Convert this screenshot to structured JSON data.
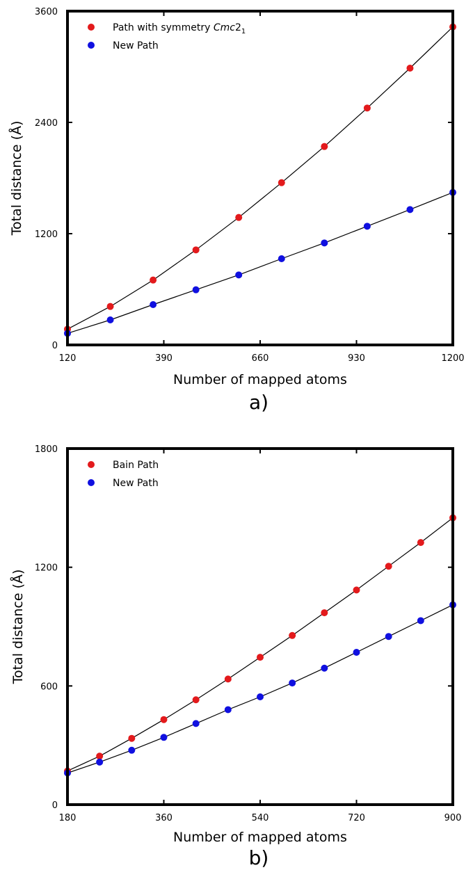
{
  "chart_data": [
    {
      "type": "scatter",
      "panel_label": "a)",
      "xlabel": "Number of mapped atoms",
      "ylabel": "Total distance (Å)",
      "xlim": [
        120,
        1200
      ],
      "ylim": [
        0,
        3600
      ],
      "xticks": [
        "120",
        "390",
        "660",
        "930",
        "1200"
      ],
      "yticks": [
        "0",
        "1200",
        "2400",
        "3600"
      ],
      "legend_position": "top-left",
      "grid": false,
      "series": [
        {
          "name": "Path with symmetry Cmc2",
          "name_subscript": "1",
          "color": "#e31a1c",
          "x": [
            120,
            240,
            360,
            480,
            600,
            720,
            840,
            960,
            1080,
            1200
          ],
          "y": [
            170,
            415,
            700,
            1025,
            1375,
            1750,
            2140,
            2555,
            2985,
            3430
          ]
        },
        {
          "name": "New Path",
          "color": "#1010e0",
          "x": [
            120,
            240,
            360,
            480,
            600,
            720,
            840,
            960,
            1080,
            1200
          ],
          "y": [
            125,
            270,
            435,
            595,
            755,
            930,
            1100,
            1280,
            1460,
            1645
          ]
        }
      ]
    },
    {
      "type": "scatter",
      "panel_label": "b)",
      "xlabel": "Number of mapped atoms",
      "ylabel": "Total distance (Å)",
      "xlim": [
        180,
        900
      ],
      "ylim": [
        0,
        1800
      ],
      "xticks": [
        "180",
        "360",
        "540",
        "720",
        "900"
      ],
      "yticks": [
        "0",
        "600",
        "1200",
        "1800"
      ],
      "legend_position": "top-left",
      "grid": false,
      "series": [
        {
          "name": "Bain Path",
          "color": "#e31a1c",
          "x": [
            180,
            240,
            300,
            360,
            420,
            480,
            540,
            600,
            660,
            720,
            780,
            840,
            900
          ],
          "y": [
            170,
            245,
            335,
            430,
            530,
            635,
            745,
            855,
            970,
            1085,
            1205,
            1325,
            1450
          ]
        },
        {
          "name": "New Path",
          "color": "#1010e0",
          "x": [
            180,
            240,
            300,
            360,
            420,
            480,
            540,
            600,
            660,
            720,
            780,
            840,
            900
          ],
          "y": [
            160,
            215,
            275,
            340,
            410,
            480,
            545,
            615,
            690,
            770,
            850,
            930,
            1010
          ]
        }
      ]
    }
  ]
}
